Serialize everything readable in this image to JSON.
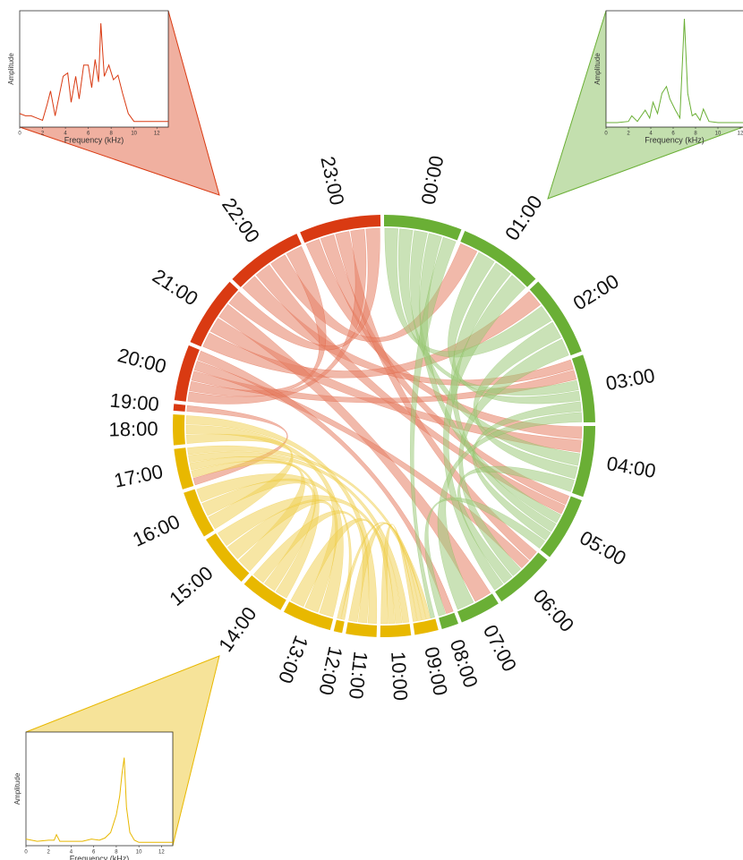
{
  "chart_data": [
    {
      "type": "chord",
      "categories": [
        "00:00",
        "01:00",
        "02:00",
        "03:00",
        "04:00",
        "05:00",
        "06:00",
        "07:00",
        "08:00",
        "09:00",
        "10:00",
        "11:00",
        "12:00",
        "13:00",
        "14:00",
        "15:00",
        "16:00",
        "17:00",
        "18:00",
        "19:00",
        "20:00",
        "21:00",
        "22:00",
        "23:00"
      ],
      "values": [
        23,
        25,
        24,
        20,
        21,
        19,
        18,
        12,
        5,
        7,
        9,
        9,
        2.5,
        14.5,
        13,
        16,
        14,
        12,
        9,
        2,
        16.5,
        21,
        23,
        24
      ],
      "colors": [
        "#6aaf35",
        "#6aaf35",
        "#6aaf35",
        "#6aaf35",
        "#6aaf35",
        "#6aaf35",
        "#6aaf35",
        "#6aaf35",
        "#6aaf35",
        "#e8b800",
        "#e8b800",
        "#e8b800",
        "#e8b800",
        "#e8b800",
        "#e8b800",
        "#e8b800",
        "#e8b800",
        "#e8b800",
        "#e8b800",
        "#d93a12",
        "#d93a12",
        "#d93a12",
        "#d93a12",
        "#d93a12"
      ],
      "chords": [
        [
          23,
          4
        ],
        [
          23,
          5
        ],
        [
          23,
          6
        ],
        [
          23,
          20
        ],
        [
          22,
          3
        ],
        [
          22,
          5
        ],
        [
          22,
          1
        ],
        [
          22,
          20
        ],
        [
          21,
          2
        ],
        [
          21,
          4
        ],
        [
          21,
          7
        ],
        [
          21,
          23
        ],
        [
          20,
          3
        ],
        [
          20,
          6
        ],
        [
          20,
          8
        ],
        [
          19,
          17
        ],
        [
          0,
          2
        ],
        [
          0,
          3
        ],
        [
          0,
          4
        ],
        [
          0,
          5
        ],
        [
          0,
          9
        ],
        [
          1,
          3
        ],
        [
          1,
          5
        ],
        [
          2,
          4
        ],
        [
          2,
          6
        ],
        [
          3,
          5
        ],
        [
          3,
          7
        ],
        [
          4,
          6
        ],
        [
          5,
          8
        ],
        [
          6,
          1
        ],
        [
          18,
          16
        ],
        [
          18,
          13
        ],
        [
          18,
          11
        ],
        [
          17,
          15
        ],
        [
          17,
          14
        ],
        [
          17,
          10
        ],
        [
          17,
          9
        ],
        [
          16,
          14
        ],
        [
          16,
          12
        ],
        [
          15,
          13
        ],
        [
          15,
          10
        ],
        [
          14,
          11
        ],
        [
          13,
          10
        ],
        [
          12,
          9
        ],
        [
          11,
          9
        ],
        [
          10,
          9
        ]
      ]
    },
    {
      "type": "line",
      "color": "#d93a12",
      "xlabel": "Frequency (kHz)",
      "ylabel": "Amplitude",
      "x": [
        0,
        0.5,
        1,
        1.5,
        2,
        2.4,
        2.7,
        3.1,
        3.5,
        3.8,
        4.2,
        4.5,
        4.9,
        5.2,
        5.6,
        6.0,
        6.3,
        6.6,
        6.9,
        7.1,
        7.4,
        7.8,
        8.2,
        8.6,
        9.0,
        9.5,
        10,
        11,
        12,
        13
      ],
      "values": [
        0.12,
        0.1,
        0.1,
        0.08,
        0.06,
        0.2,
        0.32,
        0.1,
        0.3,
        0.45,
        0.48,
        0.22,
        0.45,
        0.25,
        0.55,
        0.55,
        0.35,
        0.6,
        0.4,
        0.92,
        0.45,
        0.55,
        0.42,
        0.46,
        0.3,
        0.12,
        0.05,
        0.05,
        0.05,
        0.05
      ],
      "xlim": [
        0,
        13
      ],
      "xticks": [
        0,
        2,
        4,
        6,
        8,
        10,
        12
      ],
      "ylim": [
        0,
        1
      ]
    },
    {
      "type": "line",
      "color": "#6aaf35",
      "xlabel": "Frequency (kHz)",
      "ylabel": "Amplitude",
      "x": [
        0,
        1,
        2,
        2.3,
        2.8,
        3.5,
        3.9,
        4.2,
        4.6,
        5.0,
        5.4,
        5.7,
        6.2,
        6.6,
        7.0,
        7.3,
        7.7,
        8.0,
        8.4,
        8.7,
        9.2,
        10,
        11,
        12,
        13
      ],
      "values": [
        0.04,
        0.04,
        0.05,
        0.1,
        0.05,
        0.15,
        0.08,
        0.22,
        0.12,
        0.3,
        0.36,
        0.25,
        0.15,
        0.08,
        0.96,
        0.3,
        0.1,
        0.12,
        0.06,
        0.16,
        0.05,
        0.04,
        0.04,
        0.04,
        0.04
      ],
      "xlim": [
        0,
        13
      ],
      "xticks": [
        0,
        2,
        4,
        6,
        8,
        10,
        12
      ],
      "ylim": [
        0,
        1
      ]
    },
    {
      "type": "line",
      "color": "#e8b800",
      "xlabel": "Frequency (kHz)",
      "ylabel": "Amplitude",
      "x": [
        0,
        1,
        2,
        2.5,
        2.7,
        3,
        4,
        5,
        5.8,
        6.5,
        7,
        7.5,
        8,
        8.3,
        8.5,
        8.7,
        8.9,
        9.2,
        9.6,
        10,
        11,
        12,
        13
      ],
      "values": [
        0.06,
        0.04,
        0.05,
        0.05,
        0.1,
        0.04,
        0.04,
        0.04,
        0.06,
        0.05,
        0.07,
        0.12,
        0.28,
        0.45,
        0.65,
        0.8,
        0.35,
        0.12,
        0.05,
        0.03,
        0.03,
        0.03,
        0.03
      ],
      "xlim": [
        0,
        13
      ],
      "xticks": [
        0,
        2,
        4,
        6,
        8,
        10,
        12
      ],
      "ylim": [
        0,
        1
      ]
    }
  ]
}
